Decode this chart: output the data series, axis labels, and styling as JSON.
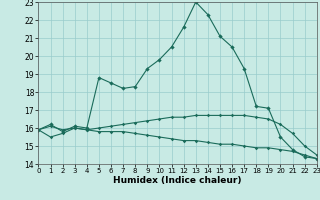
{
  "xlabel": "Humidex (Indice chaleur)",
  "xlim": [
    0,
    23
  ],
  "ylim": [
    14,
    23
  ],
  "yticks": [
    14,
    15,
    16,
    17,
    18,
    19,
    20,
    21,
    22,
    23
  ],
  "xticks": [
    0,
    1,
    2,
    3,
    4,
    5,
    6,
    7,
    8,
    9,
    10,
    11,
    12,
    13,
    14,
    15,
    16,
    17,
    18,
    19,
    20,
    21,
    22,
    23
  ],
  "bg_color": "#c8eae4",
  "line_color": "#1a6b5a",
  "grid_color": "#99cccc",
  "line1": {
    "x": [
      0,
      1,
      2,
      3,
      4,
      5,
      6,
      7,
      8,
      9,
      10,
      11,
      12,
      13,
      14,
      15,
      16,
      17,
      18,
      19,
      20,
      21,
      22,
      23
    ],
    "y": [
      15.9,
      16.2,
      15.8,
      16.1,
      16.0,
      18.8,
      18.5,
      18.2,
      18.3,
      19.3,
      19.8,
      20.5,
      21.6,
      23.0,
      22.3,
      21.1,
      20.5,
      19.3,
      17.2,
      17.1,
      15.5,
      14.8,
      14.4,
      14.3
    ]
  },
  "line2": {
    "x": [
      0,
      1,
      2,
      3,
      4,
      5,
      6,
      7,
      8,
      9,
      10,
      11,
      12,
      13,
      14,
      15,
      16,
      17,
      18,
      19,
      20,
      21,
      22,
      23
    ],
    "y": [
      15.9,
      16.1,
      15.9,
      16.0,
      15.9,
      16.0,
      16.1,
      16.2,
      16.3,
      16.4,
      16.5,
      16.6,
      16.6,
      16.7,
      16.7,
      16.7,
      16.7,
      16.7,
      16.6,
      16.5,
      16.2,
      15.7,
      15.0,
      14.5
    ]
  },
  "line3": {
    "x": [
      0,
      1,
      2,
      3,
      4,
      5,
      6,
      7,
      8,
      9,
      10,
      11,
      12,
      13,
      14,
      15,
      16,
      17,
      18,
      19,
      20,
      21,
      22,
      23
    ],
    "y": [
      15.9,
      15.5,
      15.7,
      16.0,
      15.9,
      15.8,
      15.8,
      15.8,
      15.7,
      15.6,
      15.5,
      15.4,
      15.3,
      15.3,
      15.2,
      15.1,
      15.1,
      15.0,
      14.9,
      14.9,
      14.8,
      14.7,
      14.5,
      14.3
    ]
  }
}
